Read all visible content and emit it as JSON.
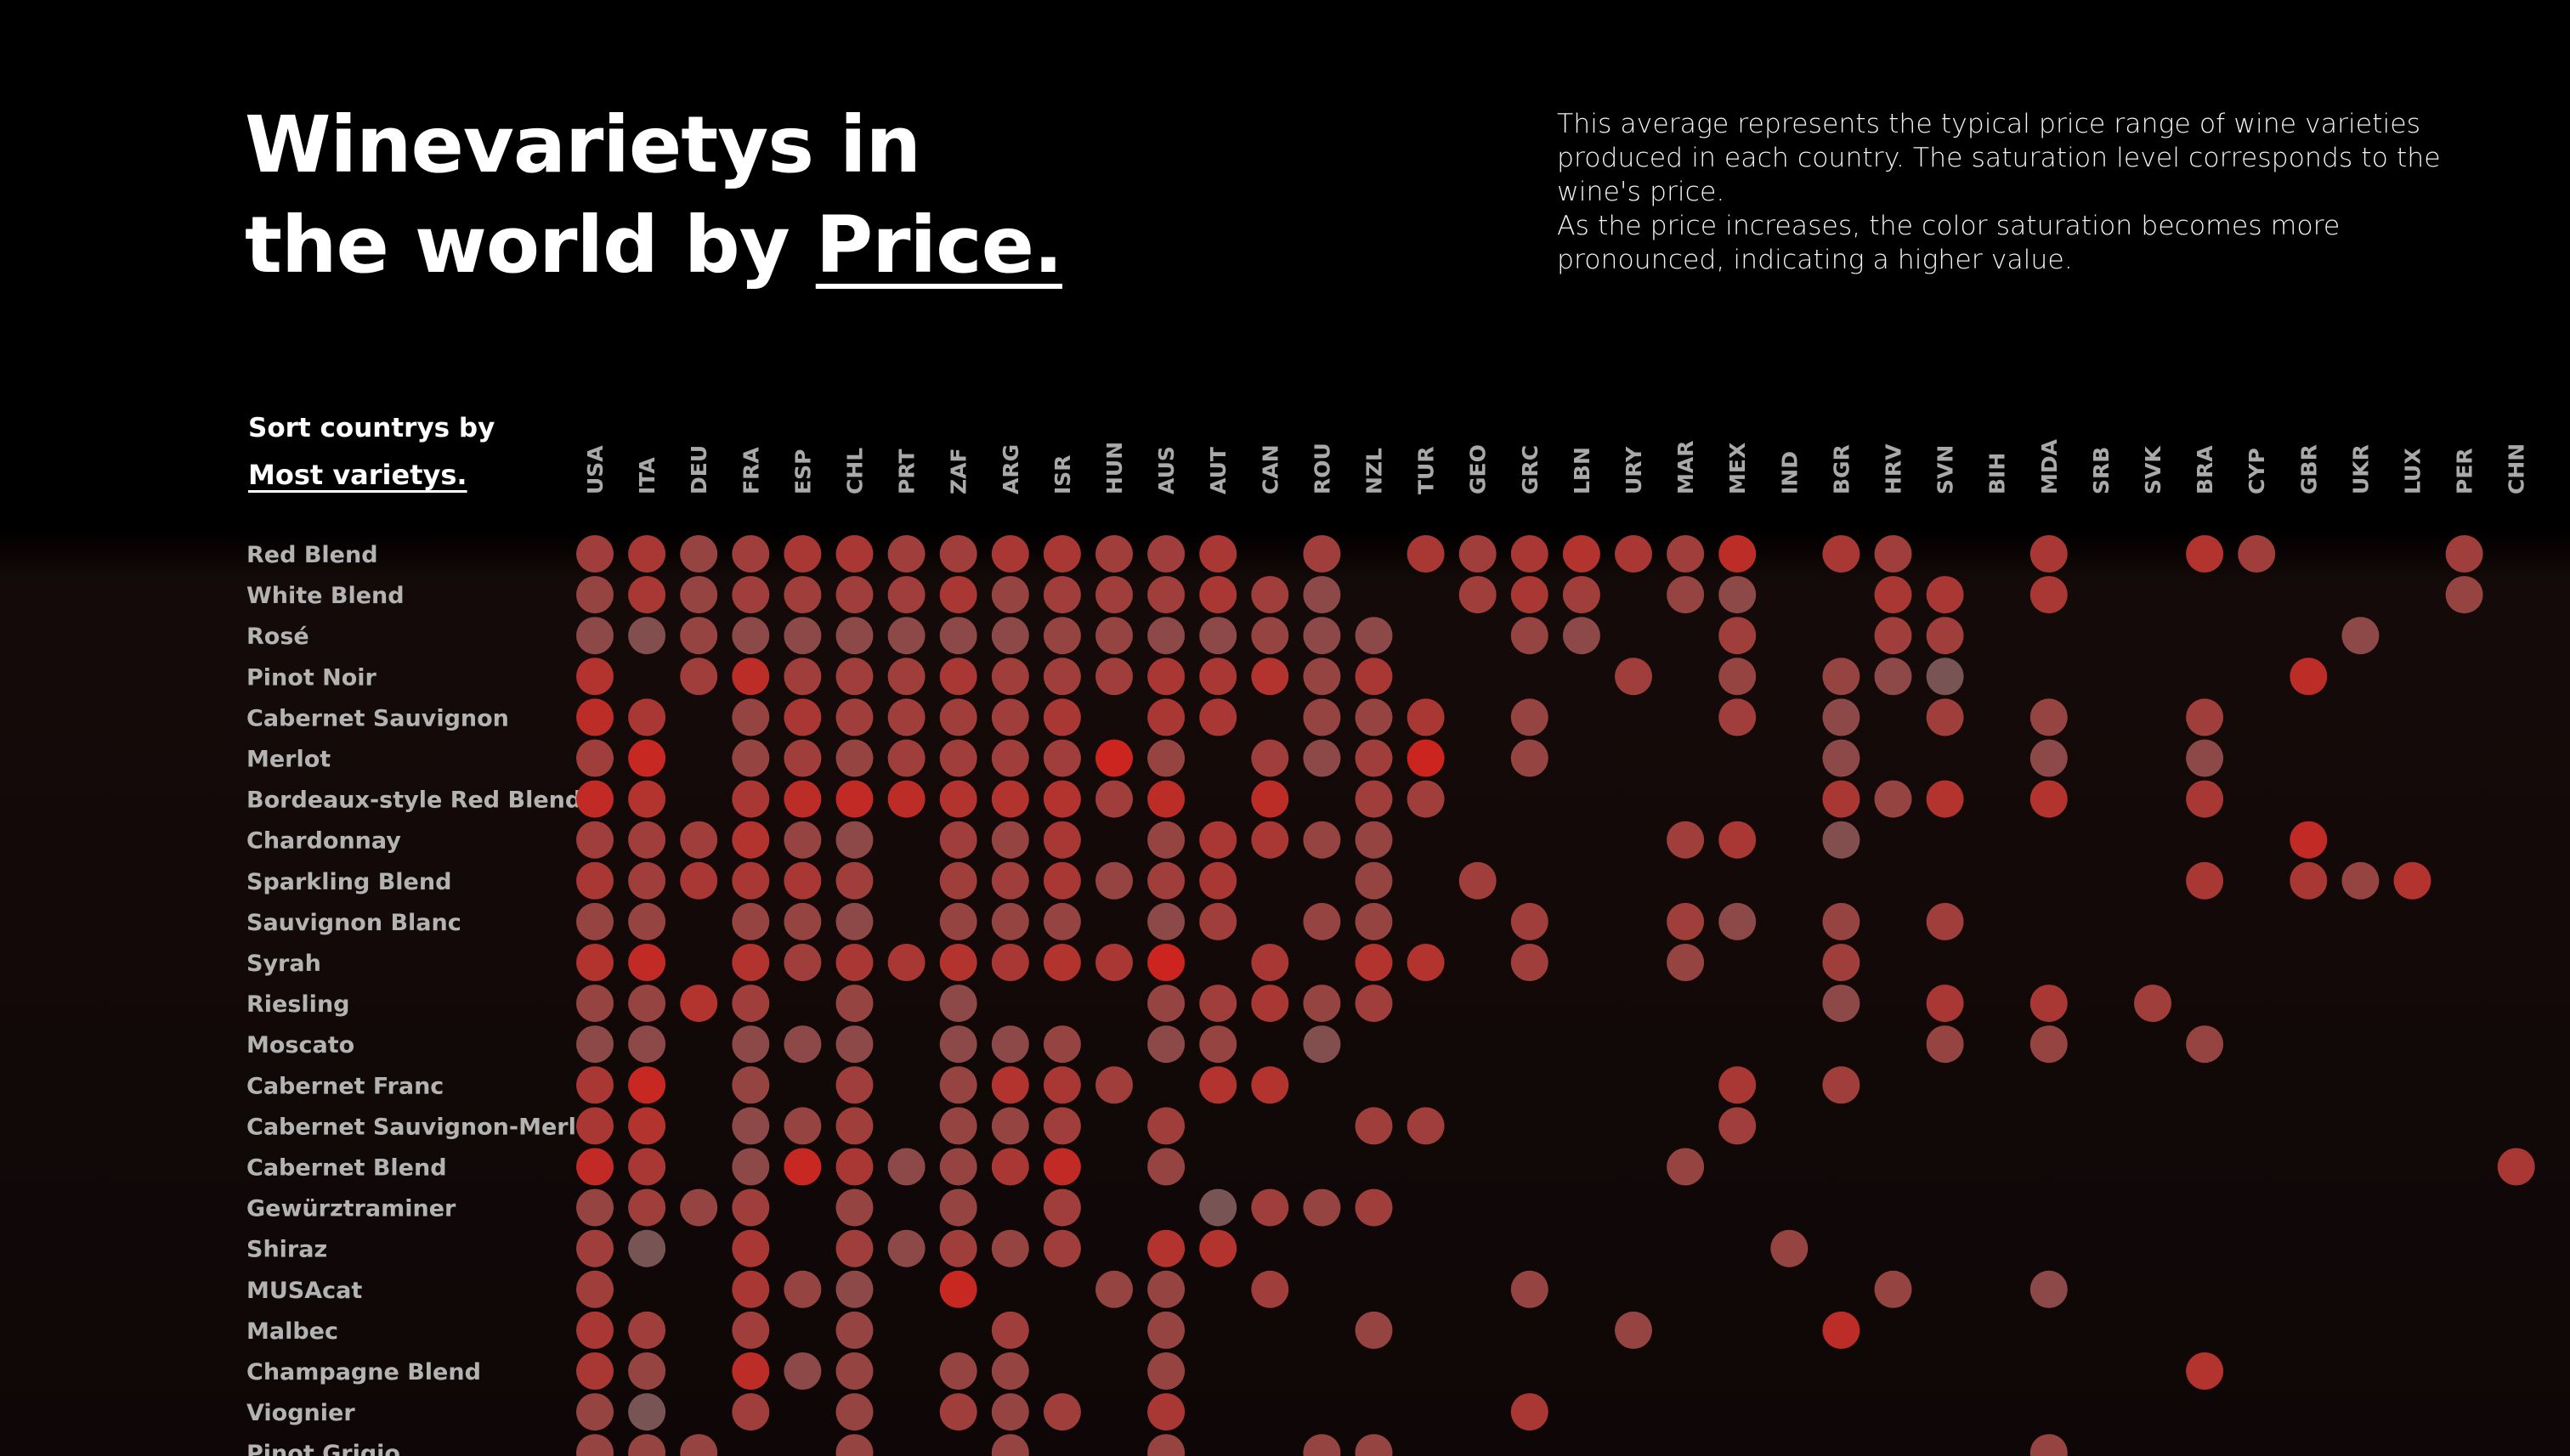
{
  "header": {
    "title_line1": "Winevarietys in",
    "title_line2_prefix": "the world by ",
    "title_highlight": "Price.",
    "description_p1": "This average represents the typical price range of wine varieties produced in each country. The saturation level corresponds to the wine's price.",
    "description_p2": "As the price increases, the color saturation becomes more pronounced, indicating a higher value."
  },
  "sort": {
    "label": "Sort countrys by",
    "link": "Most varietys."
  },
  "colors": {
    "background": "#000000",
    "dot_low": "#6e5a5a",
    "dot_high": "#d1221c"
  },
  "chart_data": {
    "type": "dot-matrix (heatmap)",
    "value_meaning": "relative price level 0-1 (color saturation), null = no data",
    "countries": [
      "USA",
      "ITA",
      "DEU",
      "FRA",
      "ESP",
      "CHL",
      "PRT",
      "ZAF",
      "ARG",
      "ISR",
      "HUN",
      "AUS",
      "AUT",
      "CAN",
      "ROU",
      "NZL",
      "TUR",
      "GEO",
      "GRC",
      "LBN",
      "URY",
      "MAR",
      "MEX",
      "IND",
      "BGR",
      "HRV",
      "SVN",
      "BIH",
      "MDA",
      "SRB",
      "SVK",
      "BRA",
      "CYP",
      "GBR",
      "UKR",
      "LUX",
      "PER",
      "CHN"
    ],
    "varieties": [
      "Red Blend",
      "White Blend",
      "Rosé",
      "Pinot Noir",
      "Cabernet Sauvignon",
      "Merlot",
      "Bordeaux-style Red Blend",
      "Chardonnay",
      "Sparkling Blend",
      "Sauvignon Blanc",
      "Syrah",
      "Riesling",
      "Moscato",
      "Cabernet Franc",
      "Cabernet Sauvignon-Merlot",
      "Cabernet Blend",
      "Gewürztraminer",
      "Shiraz",
      "MUSAcat",
      "Malbec",
      "Champagne Blend",
      "Viognier",
      "Pinot Grigio"
    ],
    "values": [
      [
        0.5,
        0.6,
        0.4,
        0.5,
        0.6,
        0.6,
        0.5,
        0.5,
        0.6,
        0.6,
        0.5,
        0.5,
        0.6,
        null,
        0.5,
        null,
        0.6,
        0.5,
        0.6,
        0.7,
        0.6,
        0.5,
        0.8,
        null,
        0.6,
        0.5,
        null,
        null,
        0.6,
        null,
        null,
        0.7,
        0.5,
        null,
        null,
        null,
        0.5,
        null
      ],
      [
        0.4,
        0.6,
        0.4,
        0.5,
        0.5,
        0.5,
        0.5,
        0.6,
        0.4,
        0.5,
        0.5,
        0.5,
        0.6,
        0.5,
        0.3,
        null,
        null,
        0.5,
        0.6,
        0.5,
        null,
        0.4,
        0.3,
        null,
        null,
        0.6,
        0.6,
        null,
        0.6,
        null,
        null,
        null,
        null,
        null,
        null,
        null,
        0.4,
        null
      ],
      [
        0.3,
        0.2,
        0.4,
        0.3,
        0.3,
        0.3,
        0.3,
        0.3,
        0.3,
        0.4,
        0.4,
        0.3,
        0.3,
        0.4,
        0.3,
        0.3,
        null,
        null,
        0.4,
        0.3,
        null,
        null,
        0.5,
        null,
        null,
        0.5,
        0.5,
        null,
        null,
        null,
        null,
        null,
        null,
        null,
        0.3,
        null,
        null,
        null
      ],
      [
        0.7,
        null,
        0.5,
        0.8,
        0.5,
        0.5,
        0.5,
        0.6,
        0.5,
        0.5,
        0.5,
        0.6,
        0.6,
        0.7,
        0.4,
        0.6,
        null,
        null,
        null,
        null,
        0.5,
        null,
        0.4,
        null,
        0.4,
        0.3,
        0.1,
        null,
        null,
        null,
        null,
        null,
        null,
        0.8,
        null,
        null,
        null,
        null
      ],
      [
        0.8,
        0.6,
        null,
        0.4,
        0.6,
        0.5,
        0.5,
        0.5,
        0.5,
        0.6,
        null,
        0.6,
        0.6,
        null,
        0.4,
        0.4,
        0.6,
        null,
        0.4,
        null,
        null,
        null,
        0.5,
        null,
        0.3,
        null,
        0.5,
        null,
        0.4,
        null,
        null,
        0.5,
        null,
        null,
        null,
        null,
        null,
        null
      ],
      [
        0.5,
        0.9,
        null,
        0.4,
        0.5,
        0.4,
        0.5,
        0.5,
        0.5,
        0.5,
        0.95,
        0.4,
        null,
        0.5,
        0.3,
        0.5,
        0.95,
        null,
        0.4,
        null,
        null,
        null,
        null,
        null,
        0.3,
        null,
        null,
        null,
        0.3,
        null,
        null,
        0.3,
        null,
        null,
        null,
        null,
        null,
        null
      ],
      [
        0.85,
        0.7,
        null,
        0.6,
        0.8,
        0.85,
        0.8,
        0.7,
        0.7,
        0.7,
        0.5,
        0.8,
        null,
        0.8,
        null,
        0.5,
        0.5,
        null,
        null,
        null,
        null,
        null,
        null,
        null,
        0.6,
        0.4,
        0.7,
        null,
        0.7,
        null,
        null,
        0.6,
        null,
        null,
        null,
        null,
        null,
        null
      ],
      [
        0.5,
        0.5,
        0.5,
        0.7,
        0.4,
        0.3,
        null,
        0.5,
        0.4,
        0.6,
        null,
        0.4,
        0.6,
        0.6,
        0.4,
        0.4,
        null,
        null,
        null,
        null,
        null,
        0.5,
        0.6,
        null,
        0.2,
        null,
        null,
        null,
        null,
        null,
        null,
        null,
        null,
        0.85,
        null,
        null,
        null,
        null
      ],
      [
        0.6,
        0.5,
        0.6,
        0.6,
        0.6,
        0.5,
        null,
        0.5,
        0.5,
        0.6,
        0.4,
        0.5,
        0.6,
        null,
        null,
        0.4,
        null,
        0.5,
        null,
        null,
        null,
        null,
        null,
        null,
        null,
        null,
        null,
        null,
        null,
        null,
        null,
        0.6,
        null,
        0.6,
        0.4,
        0.7,
        null,
        null
      ],
      [
        0.4,
        0.4,
        null,
        0.4,
        0.4,
        0.3,
        null,
        0.4,
        0.4,
        0.4,
        null,
        0.3,
        0.5,
        null,
        0.4,
        0.4,
        null,
        null,
        0.5,
        null,
        null,
        0.5,
        0.3,
        null,
        0.4,
        null,
        0.5,
        null,
        null,
        null,
        null,
        null,
        null,
        null,
        null,
        null,
        null,
        null
      ],
      [
        0.7,
        0.85,
        null,
        0.7,
        0.5,
        0.6,
        0.6,
        0.7,
        0.6,
        0.7,
        0.6,
        0.95,
        null,
        0.6,
        null,
        0.7,
        0.7,
        null,
        0.5,
        null,
        null,
        0.4,
        null,
        null,
        0.5,
        null,
        null,
        null,
        null,
        null,
        null,
        null,
        null,
        null,
        null,
        null,
        null,
        null
      ],
      [
        0.4,
        0.4,
        0.7,
        0.5,
        null,
        0.4,
        null,
        0.3,
        null,
        null,
        null,
        0.4,
        0.5,
        0.6,
        0.4,
        0.5,
        null,
        null,
        null,
        null,
        null,
        null,
        null,
        null,
        0.3,
        null,
        0.6,
        null,
        0.6,
        null,
        0.5,
        null,
        null,
        null,
        null,
        null,
        null,
        null
      ],
      [
        0.3,
        0.3,
        null,
        0.3,
        0.3,
        0.3,
        null,
        0.3,
        0.3,
        0.4,
        null,
        0.3,
        0.4,
        null,
        0.2,
        null,
        null,
        null,
        null,
        null,
        null,
        null,
        null,
        null,
        null,
        null,
        0.4,
        null,
        0.4,
        null,
        null,
        0.4,
        null,
        null,
        null,
        null,
        null,
        null
      ],
      [
        0.6,
        0.9,
        null,
        0.4,
        null,
        0.5,
        null,
        0.4,
        0.7,
        0.6,
        0.5,
        null,
        0.7,
        0.7,
        null,
        null,
        null,
        null,
        null,
        null,
        null,
        null,
        0.6,
        null,
        0.5,
        null,
        null,
        null,
        null,
        null,
        null,
        null,
        null,
        null,
        null,
        null,
        null,
        null
      ],
      [
        0.6,
        0.7,
        null,
        0.3,
        0.4,
        0.5,
        null,
        0.4,
        0.4,
        0.5,
        null,
        0.5,
        null,
        null,
        null,
        0.5,
        0.5,
        null,
        null,
        null,
        null,
        null,
        0.5,
        null,
        null,
        null,
        null,
        null,
        null,
        null,
        null,
        null,
        null,
        null,
        null,
        null,
        null,
        null
      ],
      [
        0.85,
        0.6,
        null,
        0.3,
        0.9,
        0.6,
        0.3,
        0.4,
        0.6,
        0.85,
        null,
        0.4,
        null,
        null,
        null,
        null,
        null,
        null,
        null,
        null,
        null,
        0.4,
        null,
        null,
        null,
        null,
        null,
        null,
        null,
        null,
        null,
        null,
        null,
        null,
        null,
        null,
        null,
        0.6
      ],
      [
        0.4,
        0.5,
        0.4,
        0.5,
        null,
        0.4,
        null,
        0.4,
        null,
        0.5,
        null,
        null,
        0.1,
        0.5,
        0.4,
        0.5,
        null,
        null,
        null,
        null,
        null,
        null,
        null,
        null,
        null,
        null,
        null,
        null,
        null,
        null,
        null,
        null,
        null,
        null,
        null,
        null,
        null,
        null
      ],
      [
        0.5,
        0.1,
        null,
        0.6,
        null,
        0.5,
        0.3,
        0.5,
        0.4,
        0.5,
        null,
        0.7,
        0.7,
        null,
        null,
        null,
        null,
        null,
        null,
        null,
        null,
        null,
        null,
        0.4,
        null,
        null,
        null,
        null,
        null,
        null,
        null,
        null,
        null,
        null,
        null,
        null,
        null,
        null
      ],
      [
        0.5,
        null,
        null,
        0.6,
        0.4,
        0.3,
        null,
        0.9,
        null,
        null,
        0.4,
        0.4,
        null,
        0.5,
        null,
        null,
        null,
        null,
        0.4,
        null,
        null,
        null,
        null,
        null,
        null,
        0.4,
        null,
        null,
        0.3,
        null,
        null,
        null,
        null,
        null,
        null,
        null,
        null,
        null
      ],
      [
        0.6,
        0.5,
        null,
        0.5,
        null,
        0.4,
        null,
        null,
        0.5,
        null,
        null,
        0.4,
        null,
        null,
        null,
        0.4,
        null,
        null,
        null,
        null,
        0.4,
        null,
        null,
        null,
        0.8,
        null,
        null,
        null,
        null,
        null,
        null,
        null,
        null,
        null,
        null,
        null,
        null,
        null
      ],
      [
        0.6,
        0.4,
        null,
        0.8,
        0.3,
        0.4,
        null,
        0.4,
        0.4,
        null,
        null,
        0.4,
        null,
        null,
        null,
        null,
        null,
        null,
        null,
        null,
        null,
        null,
        null,
        null,
        null,
        null,
        null,
        null,
        null,
        null,
        null,
        0.7,
        null,
        null,
        null,
        null,
        null,
        null
      ],
      [
        0.4,
        0.1,
        null,
        0.5,
        null,
        0.4,
        null,
        0.5,
        0.4,
        0.5,
        null,
        0.6,
        null,
        null,
        null,
        null,
        null,
        null,
        0.6,
        null,
        null,
        null,
        null,
        null,
        null,
        null,
        null,
        null,
        null,
        null,
        null,
        null,
        null,
        null,
        null,
        null,
        null,
        null
      ],
      [
        0.4,
        0.4,
        0.4,
        null,
        null,
        0.4,
        null,
        null,
        0.4,
        null,
        null,
        0.4,
        null,
        null,
        0.4,
        0.4,
        null,
        null,
        null,
        null,
        null,
        null,
        null,
        null,
        null,
        null,
        null,
        null,
        0.4,
        null,
        null,
        null,
        null,
        null,
        null,
        null,
        null,
        null
      ]
    ]
  }
}
